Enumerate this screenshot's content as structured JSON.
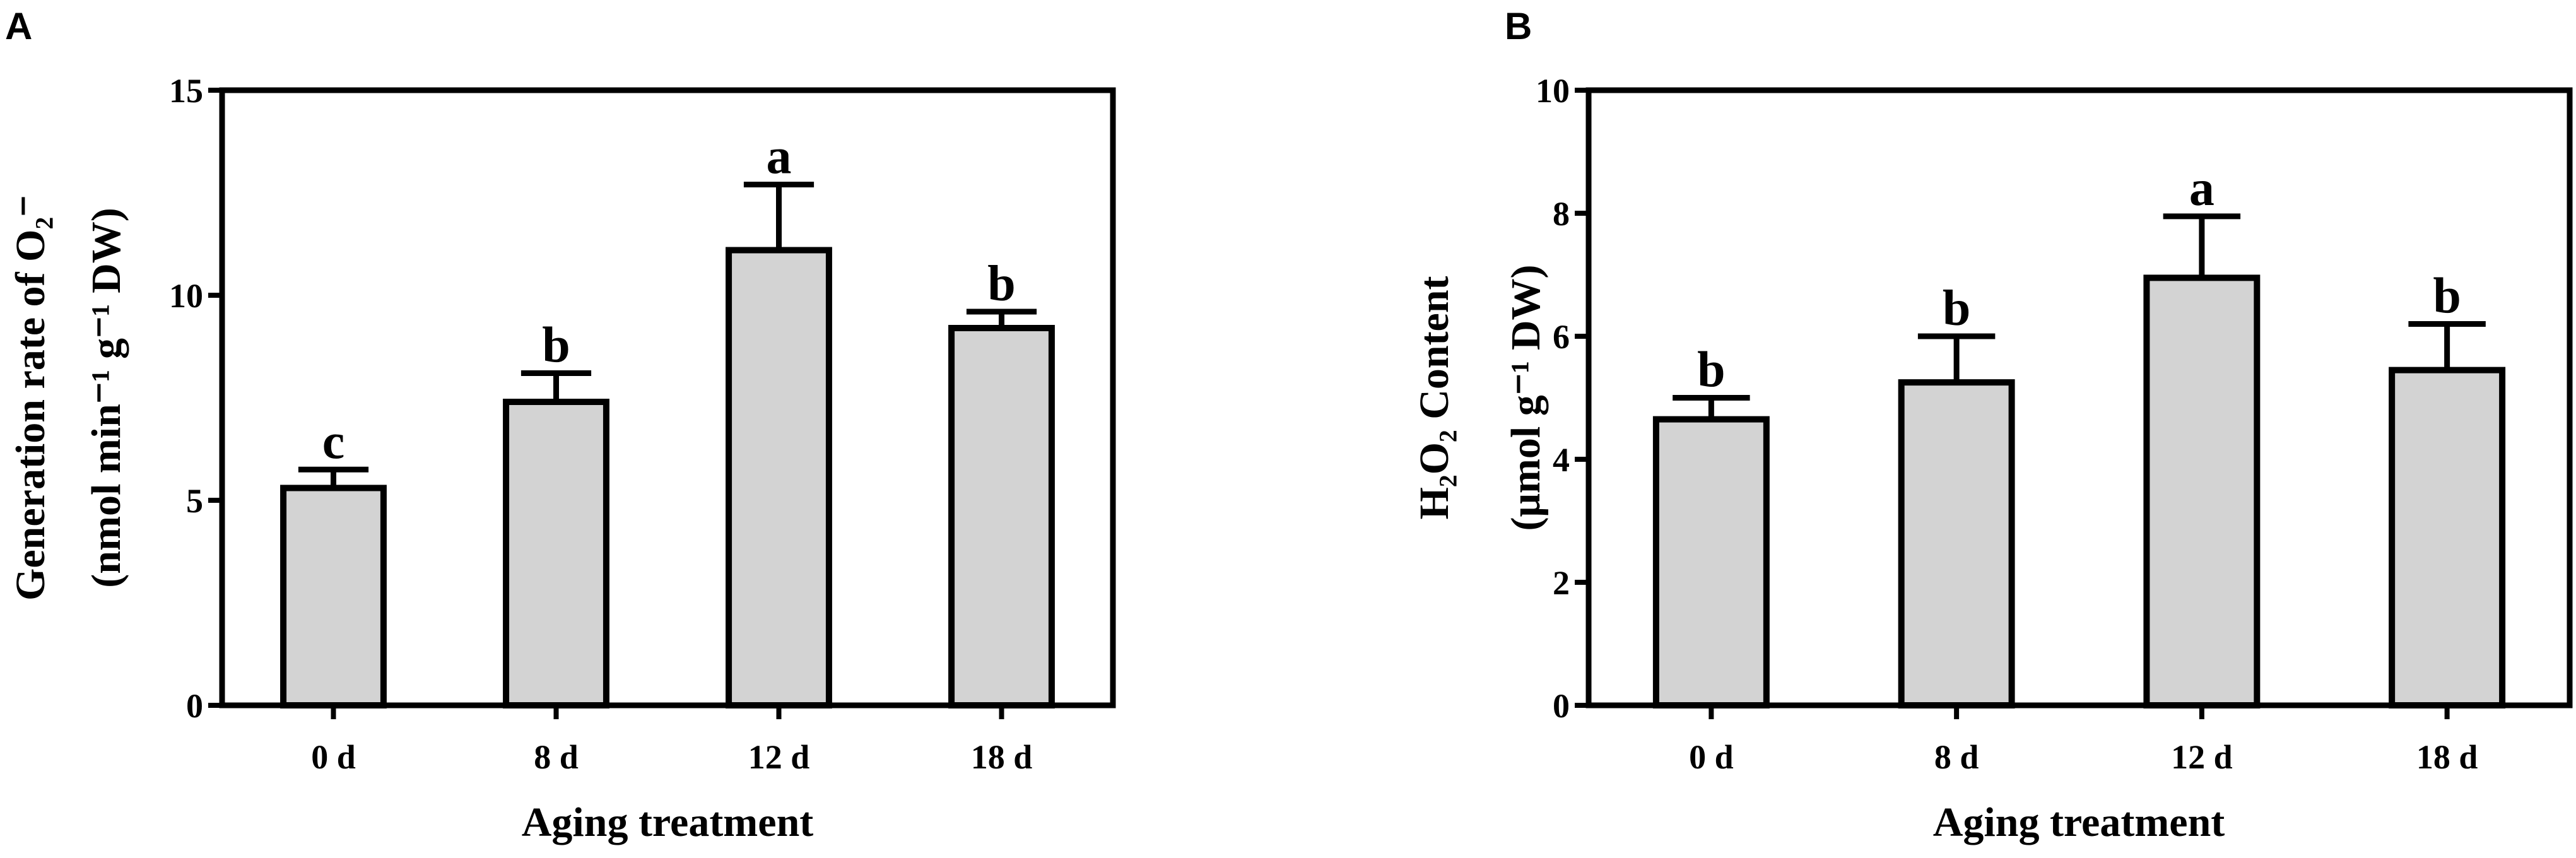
{
  "chart_data": [
    {
      "panel_label": "A",
      "type": "bar",
      "categories": [
        "0 d",
        "8 d",
        "12 d",
        "18 d"
      ],
      "values": [
        5.3,
        7.4,
        11.1,
        9.2
      ],
      "errors": [
        0.45,
        0.7,
        1.6,
        0.4
      ],
      "significance": [
        "c",
        "b",
        "a",
        "b"
      ],
      "xlabel": "Aging treatment",
      "ylabel_line1": "Generation rate of O₂⁻",
      "ylabel_line2": "(nmol min⁻¹ g⁻¹ DW)",
      "ylim": [
        0,
        15
      ],
      "yticks": [
        0,
        5,
        10,
        15
      ],
      "ytick_labels": [
        "0",
        "5",
        "10",
        "15"
      ],
      "bar_color": "#d3d3d3",
      "grid": false
    },
    {
      "panel_label": "B",
      "type": "bar",
      "categories": [
        "0 d",
        "8 d",
        "12 d",
        "18 d"
      ],
      "values": [
        4.65,
        5.25,
        6.95,
        5.45
      ],
      "errors": [
        0.35,
        0.75,
        1.0,
        0.75
      ],
      "significance": [
        "b",
        "b",
        "a",
        "b"
      ],
      "xlabel": "Aging treatment",
      "ylabel_line1": "H₂O₂ Content",
      "ylabel_line2": "(μmol g⁻¹ DW)",
      "ylim": [
        0,
        10
      ],
      "yticks": [
        0,
        2,
        4,
        6,
        8,
        10
      ],
      "ytick_labels": [
        "0",
        "2",
        "4",
        "6",
        "8",
        "10"
      ],
      "bar_color": "#d3d3d3",
      "grid": false
    }
  ]
}
